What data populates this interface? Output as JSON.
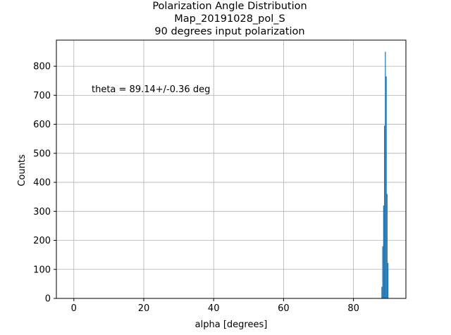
{
  "chart_data": {
    "type": "bar",
    "title_lines": [
      "Polarization Angle Distribution",
      "Map_20191028_pol_S",
      "90 degrees input polarization"
    ],
    "xlabel": "alpha [degrees]",
    "ylabel": "Counts",
    "xlim": [
      -5,
      95
    ],
    "ylim": [
      0,
      890
    ],
    "xticks": [
      0,
      20,
      40,
      60,
      80
    ],
    "yticks": [
      0,
      100,
      200,
      300,
      400,
      500,
      600,
      700,
      800
    ],
    "grid": true,
    "annotation": "theta = 89.14+/-0.36 deg",
    "bar_color": "#1f77b4",
    "annotation_color": "#0000ff",
    "bins": [
      {
        "x0": 88.0,
        "x1": 88.25,
        "count": 40
      },
      {
        "x0": 88.25,
        "x1": 88.5,
        "count": 180
      },
      {
        "x0": 88.5,
        "x1": 88.75,
        "count": 320
      },
      {
        "x0": 88.75,
        "x1": 89.0,
        "count": 595
      },
      {
        "x0": 89.0,
        "x1": 89.25,
        "count": 850
      },
      {
        "x0": 89.25,
        "x1": 89.5,
        "count": 765
      },
      {
        "x0": 89.5,
        "x1": 89.75,
        "count": 360
      },
      {
        "x0": 89.75,
        "x1": 90.0,
        "count": 122
      }
    ]
  }
}
